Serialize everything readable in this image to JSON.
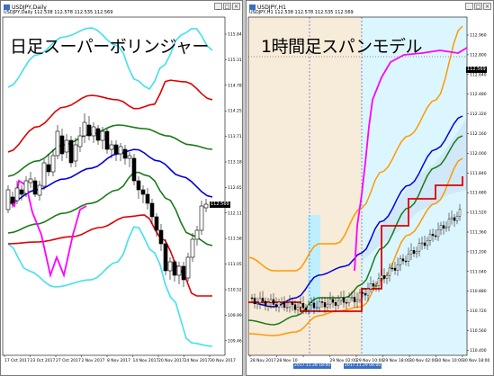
{
  "left": {
    "title": "USDJPY,Daily",
    "ohlc": "USDJPY,Daily 112.538 112.578 112.535 112.569",
    "overlay": "日足スーパーボリンジャー",
    "current_price": "112.569",
    "price_labels": [
      "115.840",
      "115.310",
      "114.780",
      "114.250",
      "113.710",
      "113.180",
      "112.650",
      "112.110",
      "111.580",
      "111.050",
      "110.520",
      "109.990",
      "109.460"
    ],
    "time_labels": [
      "17 Oct 2017",
      "23 Oct 2017",
      "27 Oct 2017",
      "2 Nov 2017",
      "8 Nov 2017",
      "14 Nov 2017",
      "20 Nov 2017",
      "24 Nov 2017",
      "30 Nov 2017"
    ],
    "colors": {
      "outer": "#40e0f0",
      "upper2": "#e00000",
      "upper1": "#1a7a1a",
      "mid": "#0000e0",
      "lag": "#ff00ff",
      "bull": "#000000",
      "bear": "#000000"
    }
  },
  "right": {
    "title": "USDJPY,H1",
    "ohlc": "USDJPY,H1 112.538 112.578 112.535 112.569",
    "overlay": "1時間足スパンモデル",
    "current_price": "112.569",
    "price_labels": [
      "112.960",
      "112.800",
      "112.640",
      "112.480",
      "112.320",
      "112.160",
      "112.000",
      "111.840",
      "111.680",
      "111.520",
      "111.360",
      "111.200",
      "111.040",
      "110.880",
      "110.720",
      "110.560",
      "110.400"
    ],
    "time_labels": [
      "28 Nov 2017",
      "28 Nov 10",
      "",
      "29 Nov 02:00",
      "29 Nov 10:00",
      "29 Nov 18:00",
      "30 Nov 02:00",
      "30 Nov 10:00",
      "30 Nov 18:00"
    ],
    "time_markers": [
      "2017.11.28 18:00",
      "2017.11.29 04:00"
    ],
    "colors": {
      "outer": "#ff9900",
      "span": "#0000e0",
      "line1": "#1a7a1a",
      "red": "#e00000",
      "lag": "#ff00ff",
      "cloud": "#bfefff",
      "session": "#f7ebd9"
    }
  },
  "window_controls": [
    "_",
    "□",
    "×"
  ]
}
